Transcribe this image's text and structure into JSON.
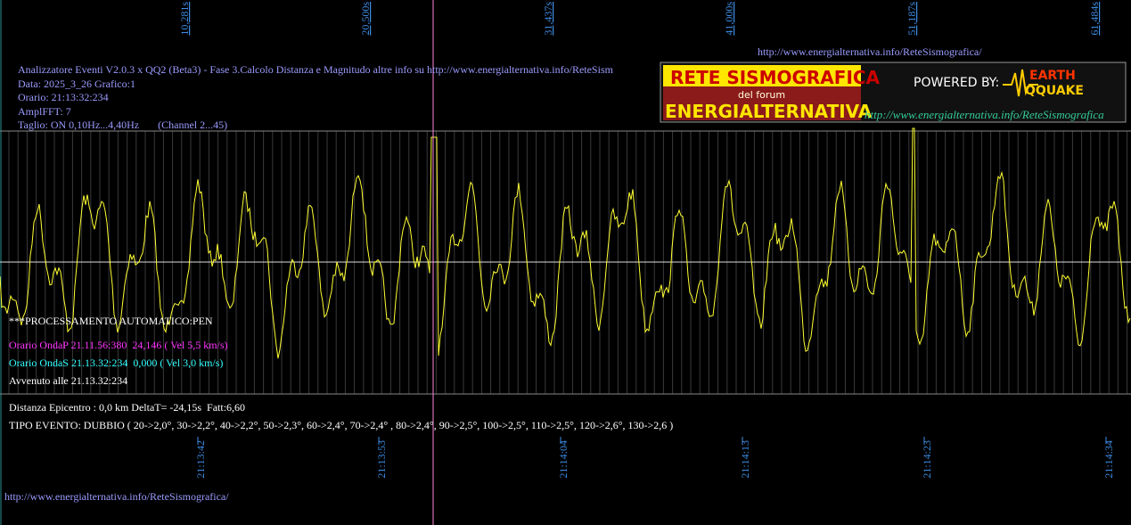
{
  "top_time_marks": [
    "10,281s",
    "20,500s",
    "31,437s",
    "41,000s",
    "51,187s",
    "61,484s"
  ],
  "header_url": "http://www.energialternativa.info/ReteSismografica/",
  "info_lines": [
    "Analizzatore Eventi V2.0.3 x QQ2 (Beta3) - Fase 3.Calcolo Distanza e Magnitudo altre info su http://www.energialternativa.info/ReteSism",
    "Data: 2025_3_26 Grafico:1",
    "Orario: 21:13:32:234",
    "AmplFFT: 7",
    "Taglio: ON 0,10Hz...4,40Hz       (Channel 2...45)"
  ],
  "logo": {
    "title": "RETE SISMOGRAFICA",
    "subtitle": "del forum",
    "brand": "ENERGIALTERNATIVA",
    "powered_by": "POWERED BY:",
    "earth": "EARTH",
    "quake": "QQUAKE",
    "url": "http://www.energialternativa.info/ReteSismografica"
  },
  "processing": {
    "title": "***PROCESSAMENTO AUTOMATICO:PEN",
    "onda_p": "Orario OndaP 21.11.56:380  24,146 ( Vel 5,5 km/s)",
    "onda_s": "Orario OndaS 21.13.32:234  0,000 ( Vel 3,0 km/s)",
    "avvenuto": "Avvenuto alle 21.13.32:234",
    "distanza": "Distanza Epicentro : 0,0 km DeltaT= -24,15s  Fatt:6,60",
    "tipo": "TIPO EVENTO: DUBBIO ( 20->2,0°, 30->2,2°, 40->2,2°, 50->2,3°, 60->2,4°, 70->2,4° , 80->2,4°, 90->2,5°, 100->2,5°, 110->2,5°, 120->2,6°, 130->2,6 )"
  },
  "bottom_times": [
    "21:13:42",
    "21:13:53",
    "21:14:04",
    "21:14:13",
    "21:14:23",
    "21:14:34"
  ],
  "footer_url": "http://www.energialternativa.info/ReteSismografica/"
}
